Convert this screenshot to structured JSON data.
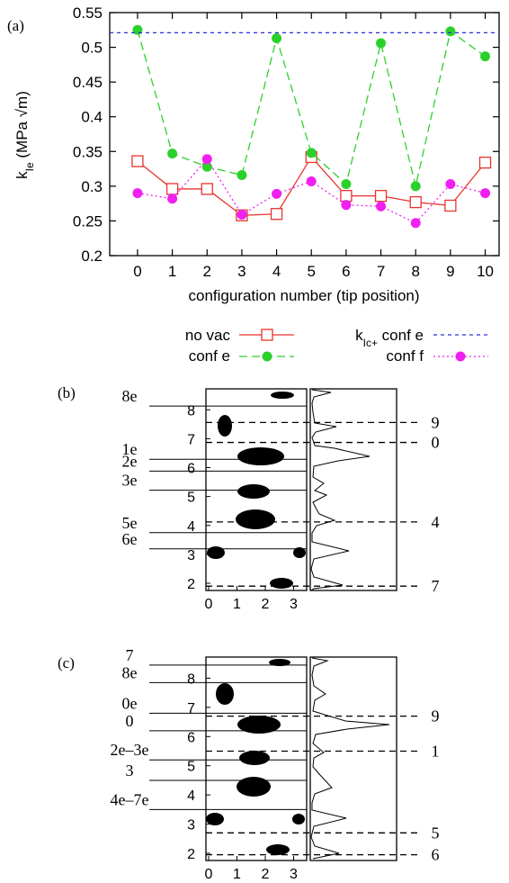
{
  "panel_a": {
    "label": "(a)",
    "xlabel": "configuration number (tip position)",
    "ylabel_main": "k",
    "ylabel_sub": "Ie",
    "ylabel_unit": " (MPa √m)",
    "legend": {
      "no_vac": "no vac",
      "conf_e": "conf e",
      "kic_main": "k",
      "kic_sub": "Ic+",
      "kic_rest": " conf e",
      "conf_f": "conf f"
    }
  },
  "panel_b": {
    "label": "(b)"
  },
  "panel_c": {
    "label": "(c)"
  },
  "chart_data": [
    {
      "type": "line",
      "x": [
        0,
        1,
        2,
        3,
        4,
        5,
        6,
        7,
        8,
        9,
        10
      ],
      "xlim": [
        -0.8,
        10.4
      ],
      "ylim": [
        0.2,
        0.55
      ],
      "xticks": [
        "0",
        "1",
        "2",
        "3",
        "4",
        "5",
        "6",
        "7",
        "8",
        "9",
        "10"
      ],
      "yticks": [
        "0.2",
        "0.25",
        "0.3",
        "0.35",
        "0.4",
        "0.45",
        "0.5",
        "0.55"
      ],
      "legend_position": "below",
      "series": [
        {
          "name": "no vac",
          "color": "#e8342e",
          "marker": "open-square",
          "dash": "solid",
          "values": [
            0.336,
            0.296,
            0.296,
            0.258,
            0.26,
            0.342,
            0.286,
            0.286,
            0.277,
            0.272,
            0.334
          ]
        },
        {
          "name": "conf e",
          "color": "#2bd12b",
          "marker": "filled-circle",
          "dash": "long",
          "values": [
            0.525,
            0.347,
            0.328,
            0.316,
            0.513,
            0.348,
            0.303,
            0.506,
            0.3,
            0.523,
            0.487
          ]
        },
        {
          "name": "kIc+ conf e",
          "color": "#2a2ae0",
          "marker": "none",
          "dash": "short",
          "values": [
            0.521,
            0.521,
            0.521,
            0.521,
            0.521,
            0.521,
            0.521,
            0.521,
            0.521,
            0.521,
            0.521
          ]
        },
        {
          "name": "conf f",
          "color": "#f020f0",
          "marker": "filled-circle",
          "dash": "dotted",
          "values": [
            0.29,
            0.282,
            0.339,
            0.259,
            0.289,
            0.307,
            0.273,
            0.271,
            0.247,
            0.303,
            0.29
          ]
        }
      ]
    },
    {
      "type": "scatter",
      "xticks": [
        "0",
        "1",
        "2",
        "3"
      ],
      "yticks": [
        "2",
        "3",
        "4",
        "5",
        "6",
        "7",
        "8"
      ],
      "solid_labels": [
        "8e",
        "1e",
        "2e",
        "3e",
        "5e",
        "6e"
      ],
      "solid_y": [
        8.13,
        6.29,
        5.88,
        5.22,
        3.75,
        3.19
      ],
      "dashed_labels": [
        "9",
        "0",
        "4",
        "7"
      ],
      "dashed_y": [
        7.56,
        6.87,
        4.12,
        1.9
      ]
    },
    {
      "type": "scatter",
      "xticks": [
        "0",
        "1",
        "2",
        "3"
      ],
      "yticks": [
        "2",
        "3",
        "4",
        "5",
        "6",
        "7",
        "8"
      ],
      "solid_labels": [
        "7",
        "8e",
        "0e",
        "0",
        "2e–3e",
        "3",
        "4e–7e"
      ],
      "solid_y": [
        8.45,
        7.85,
        6.8,
        6.2,
        5.2,
        4.5,
        3.5
      ],
      "dashed_labels": [
        "9",
        "1",
        "5",
        "6"
      ],
      "dashed_y": [
        6.7,
        5.5,
        2.7,
        1.95
      ]
    }
  ]
}
